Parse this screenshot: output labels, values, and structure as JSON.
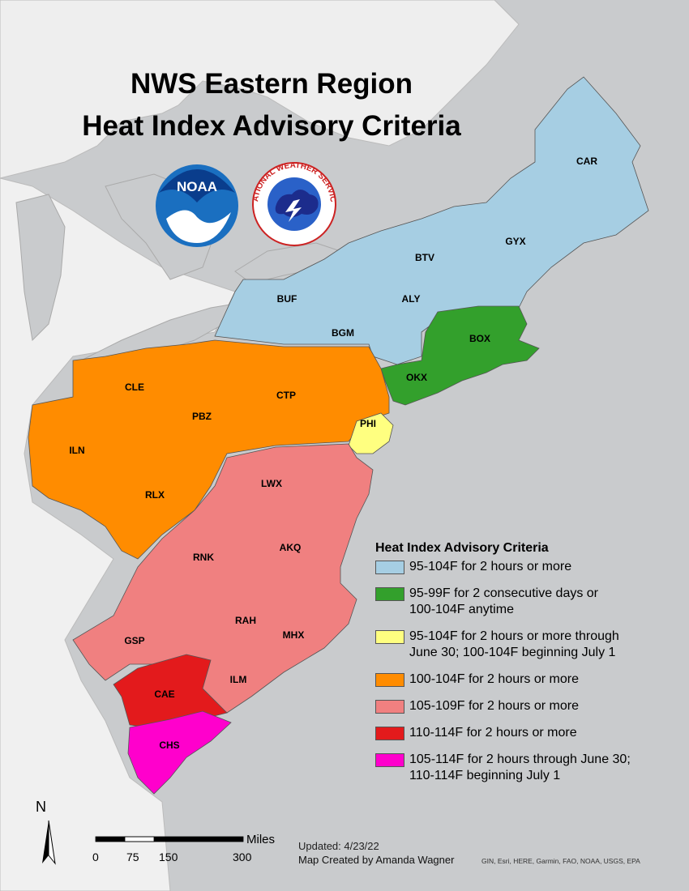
{
  "title_line1": "NWS Eastern Region",
  "title_line2": "Heat Index Advisory Criteria",
  "logos": {
    "noaa_text": "NOAA",
    "nws_text": "NATIONAL WEATHER SERVICE"
  },
  "offices": [
    {
      "id": "CAR",
      "color": "#a6cee3"
    },
    {
      "id": "BTV",
      "color": "#a6cee3"
    },
    {
      "id": "GYX",
      "color": "#a6cee3"
    },
    {
      "id": "BUF",
      "color": "#a6cee3"
    },
    {
      "id": "ALY",
      "color": "#a6cee3"
    },
    {
      "id": "BGM",
      "color": "#a6cee3"
    },
    {
      "id": "BOX",
      "color": "#33a02c"
    },
    {
      "id": "OKX",
      "color": "#33a02c"
    },
    {
      "id": "CLE",
      "color": "#ff8c00"
    },
    {
      "id": "CTP",
      "color": "#ff8c00"
    },
    {
      "id": "PBZ",
      "color": "#ff8c00"
    },
    {
      "id": "ILN",
      "color": "#ff8c00"
    },
    {
      "id": "RLX",
      "color": "#ff8c00"
    },
    {
      "id": "PHI",
      "color": "#ffff80"
    },
    {
      "id": "LWX",
      "color": "#f08080"
    },
    {
      "id": "AKQ",
      "color": "#f08080"
    },
    {
      "id": "RNK",
      "color": "#f08080"
    },
    {
      "id": "RAH",
      "color": "#f08080"
    },
    {
      "id": "MHX",
      "color": "#f08080"
    },
    {
      "id": "GSP",
      "color": "#f08080"
    },
    {
      "id": "ILM",
      "color": "#f08080"
    },
    {
      "id": "CAE",
      "color": "#e31a1c"
    },
    {
      "id": "CHS",
      "color": "#ff00cc"
    }
  ],
  "legend": {
    "title": "Heat Index Advisory Criteria",
    "items": [
      {
        "color": "#a6cee3",
        "line1": "95-104F for 2 hours or more",
        "line2": ""
      },
      {
        "color": "#33a02c",
        "line1": "95-99F for 2 consecutive days or",
        "line2": "100-104F anytime"
      },
      {
        "color": "#ffff80",
        "line1": "95-104F for 2 hours or more through",
        "line2": "June 30; 100-104F beginning July 1"
      },
      {
        "color": "#ff8c00",
        "line1": "100-104F for 2 hours or more",
        "line2": ""
      },
      {
        "color": "#f08080",
        "line1": "105-109F for 2 hours or more",
        "line2": ""
      },
      {
        "color": "#e31a1c",
        "line1": "110-114F for 2 hours or more",
        "line2": ""
      },
      {
        "color": "#ff00cc",
        "line1": "105-114F for 2 hours through June 30;",
        "line2": "110-114F beginning July 1"
      }
    ]
  },
  "scale_bar": {
    "unit": "Miles",
    "ticks": [
      "0",
      "75",
      "150",
      "300"
    ]
  },
  "north_label": "N",
  "updated": "Updated: 4/23/22",
  "credit": "Map Created by Amanda Wagner",
  "attribution": "GIN, Esri, HERE, Garmin, FAO, NOAA, USGS, EPA"
}
